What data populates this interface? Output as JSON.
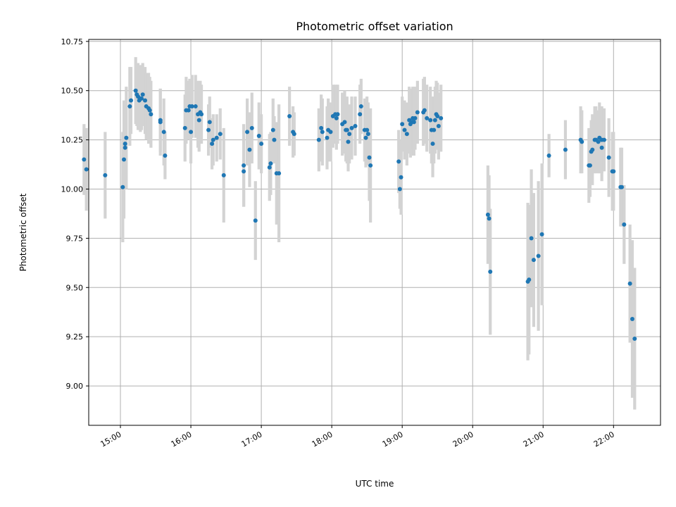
{
  "chart_data": {
    "type": "scatter",
    "title": "Photometric offset variation",
    "xlabel": "UTC time",
    "ylabel": "Photometric offset",
    "xlim": [
      "14:33",
      "22:40"
    ],
    "ylim": [
      8.8,
      10.76
    ],
    "xticks": [
      "15:00",
      "16:00",
      "17:00",
      "18:00",
      "19:00",
      "20:00",
      "21:00",
      "22:00"
    ],
    "yticks": [
      "9.00",
      "9.25",
      "9.50",
      "9.75",
      "10.00",
      "10.25",
      "10.50",
      "10.75"
    ],
    "grid": true,
    "colors": {
      "marker": "#1f77b4",
      "errorbar": "#d3d3d3"
    },
    "series": [
      {
        "points": [
          {
            "x": "14:29",
            "y": 10.15,
            "err": 0.18
          },
          {
            "x": "14:31",
            "y": 10.1,
            "err": 0.21
          },
          {
            "x": "14:47",
            "y": 10.07,
            "err": 0.22
          },
          {
            "x": "15:02",
            "y": 10.01,
            "err": 0.28
          },
          {
            "x": "15:03",
            "y": 10.15,
            "err": 0.3
          },
          {
            "x": "15:04",
            "y": 10.21,
            "err": 0.2
          },
          {
            "x": "15:04",
            "y": 10.23,
            "err": 0.2
          },
          {
            "x": "15:05",
            "y": 10.26,
            "err": 0.26
          },
          {
            "x": "15:08",
            "y": 10.42,
            "err": 0.2
          },
          {
            "x": "15:09",
            "y": 10.45,
            "err": 0.17
          },
          {
            "x": "15:13",
            "y": 10.5,
            "err": 0.17
          },
          {
            "x": "15:14",
            "y": 10.48,
            "err": 0.16
          },
          {
            "x": "15:15",
            "y": 10.47,
            "err": 0.17
          },
          {
            "x": "15:16",
            "y": 10.45,
            "err": 0.15
          },
          {
            "x": "15:17",
            "y": 10.46,
            "err": 0.17
          },
          {
            "x": "15:18",
            "y": 10.46,
            "err": 0.16
          },
          {
            "x": "15:19",
            "y": 10.48,
            "err": 0.16
          },
          {
            "x": "15:21",
            "y": 10.45,
            "err": 0.17
          },
          {
            "x": "15:22",
            "y": 10.42,
            "err": 0.17
          },
          {
            "x": "15:24",
            "y": 10.41,
            "err": 0.18
          },
          {
            "x": "15:25",
            "y": 10.4,
            "err": 0.17
          },
          {
            "x": "15:26",
            "y": 10.38,
            "err": 0.17
          },
          {
            "x": "15:34",
            "y": 10.35,
            "err": 0.16
          },
          {
            "x": "15:34",
            "y": 10.34,
            "err": 0.17
          },
          {
            "x": "15:37",
            "y": 10.29,
            "err": 0.17
          },
          {
            "x": "15:38",
            "y": 10.17,
            "err": 0.12
          },
          {
            "x": "15:55",
            "y": 10.31,
            "err": 0.17
          },
          {
            "x": "15:56",
            "y": 10.4,
            "err": 0.17
          },
          {
            "x": "15:58",
            "y": 10.4,
            "err": 0.15
          },
          {
            "x": "15:59",
            "y": 10.42,
            "err": 0.14
          },
          {
            "x": "16:00",
            "y": 10.29,
            "err": 0.16
          },
          {
            "x": "16:01",
            "y": 10.42,
            "err": 0.16
          },
          {
            "x": "16:04",
            "y": 10.42,
            "err": 0.16
          },
          {
            "x": "16:06",
            "y": 10.38,
            "err": 0.17
          },
          {
            "x": "16:07",
            "y": 10.35,
            "err": 0.16
          },
          {
            "x": "16:08",
            "y": 10.39,
            "err": 0.16
          },
          {
            "x": "16:09",
            "y": 10.38,
            "err": 0.15
          },
          {
            "x": "16:15",
            "y": 10.3,
            "err": 0.13
          },
          {
            "x": "16:16",
            "y": 10.34,
            "err": 0.13
          },
          {
            "x": "16:18",
            "y": 10.23,
            "err": 0.13
          },
          {
            "x": "16:19",
            "y": 10.25,
            "err": 0.13
          },
          {
            "x": "16:22",
            "y": 10.26,
            "err": 0.12
          },
          {
            "x": "16:25",
            "y": 10.28,
            "err": 0.13
          },
          {
            "x": "16:28",
            "y": 10.07,
            "err": 0.24
          },
          {
            "x": "16:45",
            "y": 10.09,
            "err": 0.18
          },
          {
            "x": "16:45",
            "y": 10.12,
            "err": 0.21
          },
          {
            "x": "16:48",
            "y": 10.29,
            "err": 0.17
          },
          {
            "x": "16:50",
            "y": 10.2,
            "err": 0.19
          },
          {
            "x": "16:52",
            "y": 10.31,
            "err": 0.18
          },
          {
            "x": "16:55",
            "y": 9.84,
            "err": 0.2
          },
          {
            "x": "16:58",
            "y": 10.27,
            "err": 0.17
          },
          {
            "x": "17:00",
            "y": 10.23,
            "err": 0.15
          },
          {
            "x": "17:07",
            "y": 10.11,
            "err": 0.17
          },
          {
            "x": "17:08",
            "y": 10.13,
            "err": 0.16
          },
          {
            "x": "17:10",
            "y": 10.3,
            "err": 0.16
          },
          {
            "x": "17:11",
            "y": 10.25,
            "err": 0.12
          },
          {
            "x": "17:13",
            "y": 10.08,
            "err": 0.26
          },
          {
            "x": "17:15",
            "y": 10.08,
            "err": 0.35
          },
          {
            "x": "17:24",
            "y": 10.37,
            "err": 0.15
          },
          {
            "x": "17:27",
            "y": 10.29,
            "err": 0.13
          },
          {
            "x": "17:28",
            "y": 10.28,
            "err": 0.11
          },
          {
            "x": "17:49",
            "y": 10.25,
            "err": 0.16
          },
          {
            "x": "17:51",
            "y": 10.31,
            "err": 0.17
          },
          {
            "x": "17:52",
            "y": 10.29,
            "err": 0.17
          },
          {
            "x": "17:56",
            "y": 10.26,
            "err": 0.16
          },
          {
            "x": "17:57",
            "y": 10.3,
            "err": 0.16
          },
          {
            "x": "17:59",
            "y": 10.29,
            "err": 0.15
          },
          {
            "x": "18:01",
            "y": 10.37,
            "err": 0.16
          },
          {
            "x": "18:03",
            "y": 10.38,
            "err": 0.15
          },
          {
            "x": "18:04",
            "y": 10.36,
            "err": 0.16
          },
          {
            "x": "18:05",
            "y": 10.38,
            "err": 0.15
          },
          {
            "x": "18:09",
            "y": 10.33,
            "err": 0.16
          },
          {
            "x": "18:11",
            "y": 10.34,
            "err": 0.16
          },
          {
            "x": "18:12",
            "y": 10.3,
            "err": 0.16
          },
          {
            "x": "18:13",
            "y": 10.3,
            "err": 0.17
          },
          {
            "x": "18:14",
            "y": 10.24,
            "err": 0.15
          },
          {
            "x": "18:15",
            "y": 10.28,
            "err": 0.15
          },
          {
            "x": "18:17",
            "y": 10.31,
            "err": 0.16
          },
          {
            "x": "18:20",
            "y": 10.32,
            "err": 0.15
          },
          {
            "x": "18:24",
            "y": 10.38,
            "err": 0.15
          },
          {
            "x": "18:25",
            "y": 10.42,
            "err": 0.14
          },
          {
            "x": "18:28",
            "y": 10.3,
            "err": 0.16
          },
          {
            "x": "18:29",
            "y": 10.26,
            "err": 0.15
          },
          {
            "x": "18:30",
            "y": 10.3,
            "err": 0.17
          },
          {
            "x": "18:31",
            "y": 10.28,
            "err": 0.16
          },
          {
            "x": "18:32",
            "y": 10.16,
            "err": 0.22
          },
          {
            "x": "18:33",
            "y": 10.12,
            "err": 0.29
          },
          {
            "x": "18:57",
            "y": 10.14,
            "err": 0.16
          },
          {
            "x": "18:58",
            "y": 10.0,
            "err": 0.1
          },
          {
            "x": "18:59",
            "y": 10.06,
            "err": 0.19
          },
          {
            "x": "19:00",
            "y": 10.33,
            "err": 0.14
          },
          {
            "x": "19:02",
            "y": 10.3,
            "err": 0.15
          },
          {
            "x": "19:04",
            "y": 10.28,
            "err": 0.16
          },
          {
            "x": "19:06",
            "y": 10.35,
            "err": 0.17
          },
          {
            "x": "19:07",
            "y": 10.33,
            "err": 0.17
          },
          {
            "x": "19:08",
            "y": 10.34,
            "err": 0.17
          },
          {
            "x": "19:09",
            "y": 10.36,
            "err": 0.16
          },
          {
            "x": "19:10",
            "y": 10.34,
            "err": 0.17
          },
          {
            "x": "19:11",
            "y": 10.36,
            "err": 0.16
          },
          {
            "x": "19:13",
            "y": 10.39,
            "err": 0.16
          },
          {
            "x": "19:18",
            "y": 10.39,
            "err": 0.17
          },
          {
            "x": "19:19",
            "y": 10.4,
            "err": 0.17
          },
          {
            "x": "19:21",
            "y": 10.36,
            "err": 0.17
          },
          {
            "x": "19:24",
            "y": 10.35,
            "err": 0.17
          },
          {
            "x": "19:25",
            "y": 10.3,
            "err": 0.17
          },
          {
            "x": "19:26",
            "y": 10.23,
            "err": 0.17
          },
          {
            "x": "19:27",
            "y": 10.3,
            "err": 0.17
          },
          {
            "x": "19:28",
            "y": 10.35,
            "err": 0.17
          },
          {
            "x": "19:29",
            "y": 10.38,
            "err": 0.17
          },
          {
            "x": "19:30",
            "y": 10.37,
            "err": 0.17
          },
          {
            "x": "19:31",
            "y": 10.32,
            "err": 0.17
          },
          {
            "x": "19:33",
            "y": 10.36,
            "err": 0.17
          },
          {
            "x": "20:13",
            "y": 9.87,
            "err": 0.25
          },
          {
            "x": "20:14",
            "y": 9.85,
            "err": 0.22
          },
          {
            "x": "20:15",
            "y": 9.58,
            "err": 0.32
          },
          {
            "x": "20:47",
            "y": 9.53,
            "err": 0.4
          },
          {
            "x": "20:48",
            "y": 9.54,
            "err": 0.38
          },
          {
            "x": "20:50",
            "y": 9.75,
            "err": 0.35
          },
          {
            "x": "20:52",
            "y": 9.64,
            "err": 0.34
          },
          {
            "x": "20:56",
            "y": 9.66,
            "err": 0.38
          },
          {
            "x": "20:59",
            "y": 9.77,
            "err": 0.36
          },
          {
            "x": "21:05",
            "y": 10.17,
            "err": 0.11
          },
          {
            "x": "21:19",
            "y": 10.2,
            "err": 0.15
          },
          {
            "x": "21:32",
            "y": 10.25,
            "err": 0.17
          },
          {
            "x": "21:33",
            "y": 10.24,
            "err": 0.16
          },
          {
            "x": "21:39",
            "y": 10.12,
            "err": 0.19
          },
          {
            "x": "21:40",
            "y": 10.12,
            "err": 0.16
          },
          {
            "x": "21:41",
            "y": 10.19,
            "err": 0.16
          },
          {
            "x": "21:42",
            "y": 10.2,
            "err": 0.18
          },
          {
            "x": "21:44",
            "y": 10.25,
            "err": 0.17
          },
          {
            "x": "21:45",
            "y": 10.25,
            "err": 0.17
          },
          {
            "x": "21:47",
            "y": 10.24,
            "err": 0.16
          },
          {
            "x": "21:48",
            "y": 10.26,
            "err": 0.18
          },
          {
            "x": "21:50",
            "y": 10.21,
            "err": 0.17
          },
          {
            "x": "21:50",
            "y": 10.25,
            "err": 0.17
          },
          {
            "x": "21:52",
            "y": 10.25,
            "err": 0.16
          },
          {
            "x": "21:56",
            "y": 10.16,
            "err": 0.2
          },
          {
            "x": "21:59",
            "y": 10.09,
            "err": 0.2
          },
          {
            "x": "22:00",
            "y": 10.09,
            "err": 0.2
          },
          {
            "x": "22:06",
            "y": 10.01,
            "err": 0.2
          },
          {
            "x": "22:07",
            "y": 10.01,
            "err": 0.2
          },
          {
            "x": "22:09",
            "y": 9.82,
            "err": 0.2
          },
          {
            "x": "22:14",
            "y": 9.52,
            "err": 0.3
          },
          {
            "x": "22:16",
            "y": 9.34,
            "err": 0.4
          },
          {
            "x": "22:18",
            "y": 9.24,
            "err": 0.36
          }
        ]
      }
    ]
  }
}
